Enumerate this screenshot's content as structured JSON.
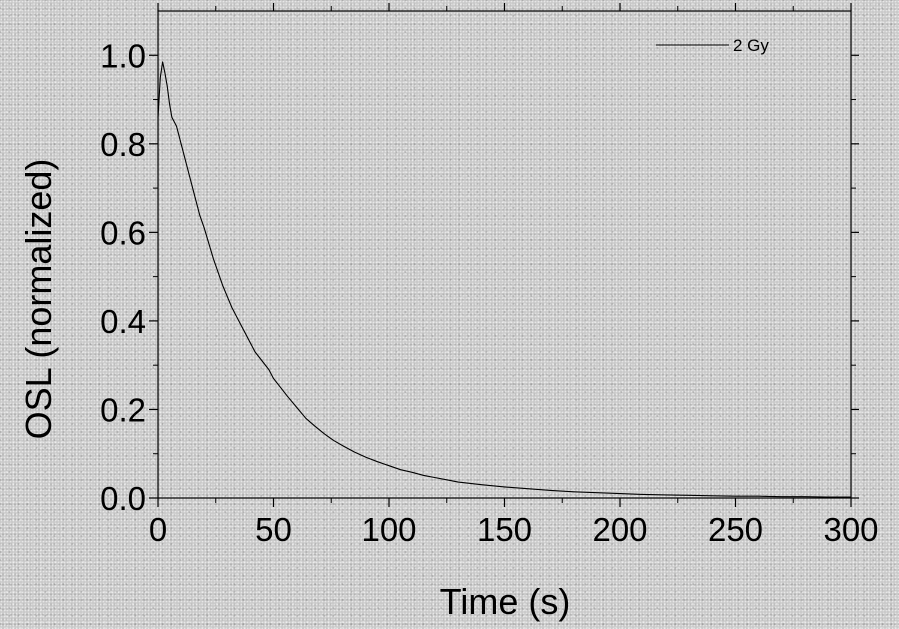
{
  "chart_data": {
    "type": "line",
    "xlabel": "Time (s)",
    "ylabel": "OSL (normalized)",
    "xlim": [
      0,
      300
    ],
    "ylim": [
      0.0,
      1.1
    ],
    "xticks": [
      0,
      50,
      100,
      150,
      200,
      250,
      300
    ],
    "xtick_labels": [
      "0",
      "50",
      "100",
      "150",
      "200",
      "250",
      "300"
    ],
    "yticks": [
      0.0,
      0.2,
      0.4,
      0.6,
      0.8,
      1.0
    ],
    "ytick_labels": [
      "0.0",
      "0.2",
      "0.4",
      "0.6",
      "0.8",
      "1.0"
    ],
    "grid": false,
    "legend_position": "top-right",
    "series": [
      {
        "name": "2 Gy",
        "color": "#000000",
        "x": [
          0,
          1,
          2,
          3,
          4,
          5,
          6,
          8,
          10,
          12,
          14,
          16,
          18,
          20,
          22,
          24,
          26,
          28,
          30,
          32,
          34,
          36,
          38,
          40,
          42,
          45,
          48,
          50,
          53,
          56,
          60,
          64,
          68,
          72,
          76,
          80,
          85,
          90,
          95,
          100,
          105,
          110,
          115,
          120,
          125,
          130,
          140,
          150,
          160,
          170,
          180,
          190,
          200,
          210,
          220,
          230,
          240,
          250,
          260,
          270,
          280,
          290,
          300
        ],
        "y": [
          0.86,
          0.95,
          0.985,
          0.96,
          0.93,
          0.89,
          0.86,
          0.84,
          0.8,
          0.76,
          0.72,
          0.68,
          0.64,
          0.61,
          0.575,
          0.54,
          0.51,
          0.48,
          0.455,
          0.43,
          0.41,
          0.39,
          0.37,
          0.35,
          0.33,
          0.31,
          0.29,
          0.27,
          0.25,
          0.23,
          0.205,
          0.18,
          0.162,
          0.145,
          0.13,
          0.118,
          0.104,
          0.092,
          0.082,
          0.073,
          0.064,
          0.058,
          0.051,
          0.046,
          0.041,
          0.036,
          0.03,
          0.025,
          0.021,
          0.017,
          0.014,
          0.012,
          0.01,
          0.008,
          0.007,
          0.006,
          0.005,
          0.004,
          0.004,
          0.003,
          0.003,
          0.002,
          0.002
        ]
      }
    ]
  }
}
